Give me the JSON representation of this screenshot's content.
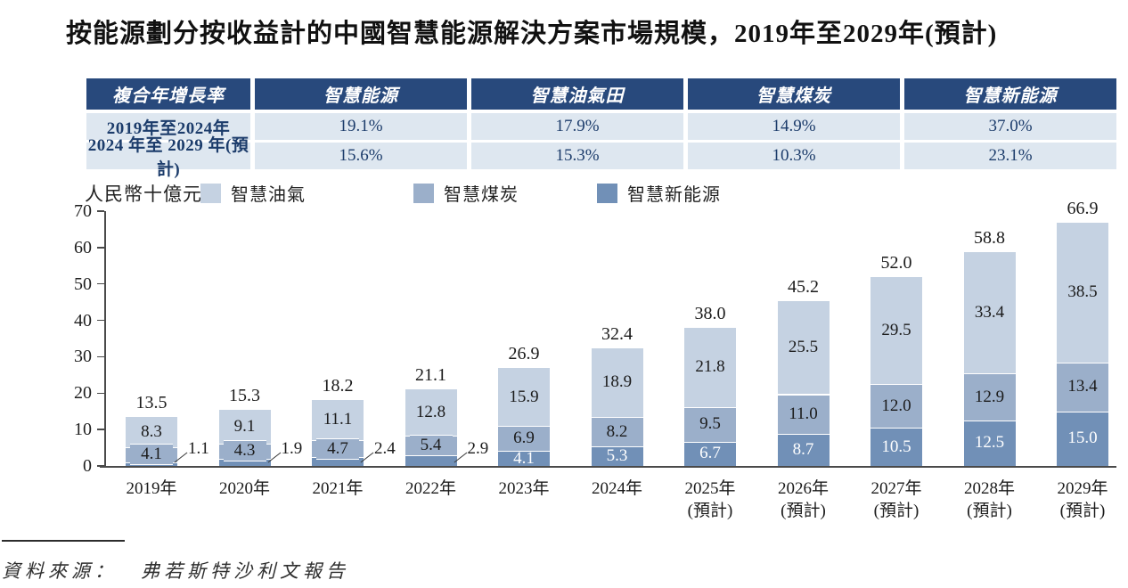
{
  "title": "按能源劃分按收益計的中國智慧能源解決方案市場規模，2019年至2029年(預計)",
  "cagr_table": {
    "header": [
      "複合年增長率",
      "智慧能源",
      "智慧油氣田",
      "智慧煤炭",
      "智慧新能源"
    ],
    "rows": [
      {
        "label": "2019年至2024年",
        "values": [
          "19.1%",
          "17.9%",
          "14.9%",
          "37.0%"
        ]
      },
      {
        "label": "2024 年至 2029 年(預計)",
        "values": [
          "15.6%",
          "15.3%",
          "10.3%",
          "23.1%"
        ]
      }
    ]
  },
  "unit_label": "人民幣十億元",
  "legend": [
    {
      "label": "智慧油氣",
      "color": "#c5d2e2"
    },
    {
      "label": "智慧煤炭",
      "color": "#9bafca"
    },
    {
      "label": "智慧新能源",
      "color": "#7190b7"
    }
  ],
  "chart_data": {
    "type": "bar",
    "stacked": true,
    "title": "按能源劃分按收益計的中國智慧能源解決方案市場規模，2019年至2029年(預計)",
    "ylabel": "人民幣十億元",
    "categories": [
      "2019年",
      "2020年",
      "2021年",
      "2022年",
      "2023年",
      "2024年",
      "2025年",
      "2026年",
      "2027年",
      "2028年",
      "2029年"
    ],
    "category_sublabels": [
      "",
      "",
      "",
      "",
      "",
      "",
      "(預計)",
      "(預計)",
      "(預計)",
      "(預計)",
      "(預計)"
    ],
    "series": [
      {
        "name": "智慧油氣",
        "color": "#c5d2e2",
        "values": [
          8.3,
          9.1,
          11.1,
          12.8,
          15.9,
          18.9,
          21.8,
          25.5,
          29.5,
          33.4,
          38.5
        ]
      },
      {
        "name": "智慧煤炭",
        "color": "#9bafca",
        "values": [
          4.1,
          4.3,
          4.7,
          5.4,
          6.9,
          8.2,
          9.5,
          11.0,
          12.0,
          12.9,
          13.4
        ]
      },
      {
        "name": "智慧新能源",
        "color": "#7190b7",
        "values": [
          1.1,
          1.9,
          2.4,
          2.9,
          4.1,
          5.3,
          6.7,
          8.7,
          10.5,
          12.5,
          15.0
        ]
      }
    ],
    "totals": [
      13.5,
      15.3,
      18.2,
      21.1,
      26.9,
      32.4,
      38.0,
      45.2,
      52.0,
      58.8,
      66.9
    ],
    "ylim": [
      0,
      70
    ],
    "yticks": [
      0,
      10,
      20,
      30,
      40,
      50,
      60,
      70
    ],
    "grid": false,
    "legend_position": "top"
  },
  "source": {
    "label": "資料來源：",
    "text": "弗若斯特沙利文報告"
  },
  "colors": {
    "table_header_bg": "#28497c",
    "table_row_bg": "#dee7f0",
    "table_text": "#1c3c6b",
    "axis": "#4a4a4a"
  }
}
